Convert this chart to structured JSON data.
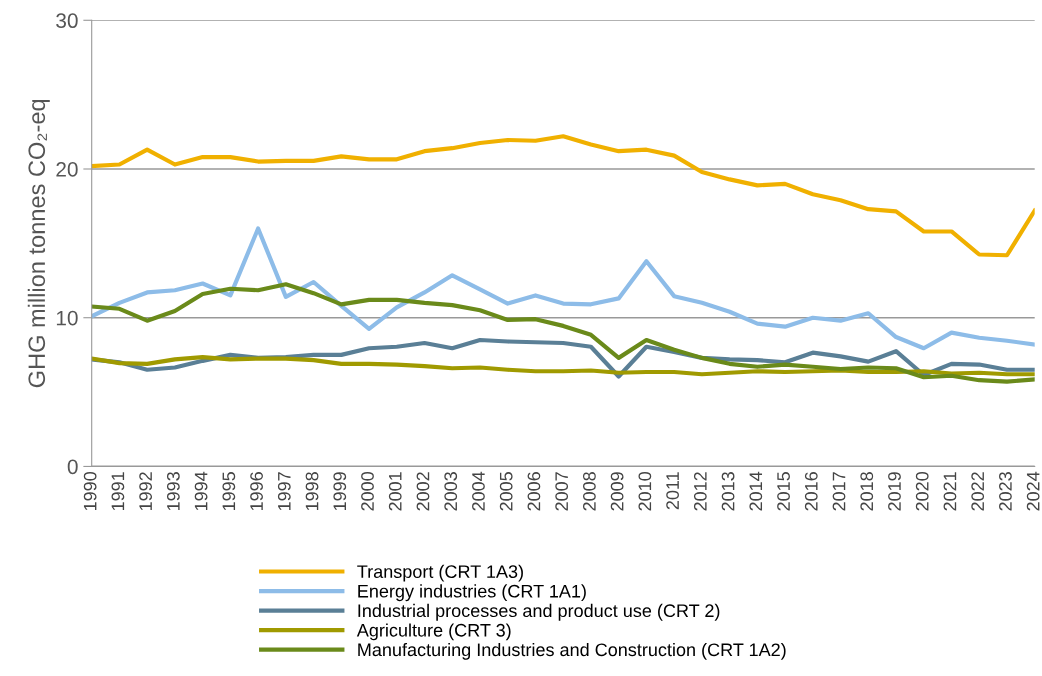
{
  "chart_data": {
    "type": "line",
    "ylabel": "GHG million tonnes CO₂-eq",
    "categories": [
      "1990",
      "1991",
      "1992",
      "1993",
      "1994",
      "1995",
      "1996",
      "1997",
      "1998",
      "1999",
      "2000",
      "2001",
      "2002",
      "2003",
      "2004",
      "2005",
      "2006",
      "2007",
      "2008",
      "2009",
      "2010",
      "2011",
      "2012",
      "2013",
      "2014",
      "2015",
      "2016",
      "2017",
      "2018",
      "2019",
      "2020",
      "2021",
      "2022",
      "2023",
      "2024"
    ],
    "series": [
      {
        "name": "Transport (CRT 1A3)",
        "color": "#f0b000",
        "values": [
          20.2,
          20.3,
          21.3,
          20.3,
          20.8,
          20.8,
          20.5,
          20.55,
          20.55,
          20.85,
          20.65,
          20.65,
          21.2,
          21.4,
          21.75,
          21.95,
          21.9,
          22.2,
          21.65,
          21.2,
          21.3,
          20.9,
          19.8,
          19.3,
          18.9,
          19.0,
          18.3,
          17.9,
          17.3,
          17.15,
          15.8,
          15.8,
          14.25,
          14.2,
          17.2
        ]
      },
      {
        "name": "Energy industries (CRT 1A1)",
        "color": "#8dbce8",
        "values": [
          10.1,
          11.0,
          11.7,
          11.85,
          12.3,
          11.5,
          16.0,
          11.4,
          12.4,
          10.8,
          9.25,
          10.7,
          11.7,
          12.85,
          11.9,
          10.95,
          11.5,
          10.95,
          10.9,
          11.3,
          13.8,
          11.45,
          11.0,
          10.4,
          9.6,
          9.4,
          10.0,
          9.8,
          10.3,
          8.7,
          7.95,
          9.0,
          8.65,
          8.45,
          8.2
        ]
      },
      {
        "name": "Industrial processes and product use (CRT 2)",
        "color": "#5a7f96",
        "values": [
          7.2,
          7.0,
          6.5,
          6.65,
          7.1,
          7.5,
          7.3,
          7.35,
          7.5,
          7.5,
          7.95,
          8.05,
          8.3,
          7.95,
          8.5,
          8.4,
          8.35,
          8.3,
          8.05,
          6.05,
          8.05,
          7.7,
          7.3,
          7.2,
          7.15,
          7.0,
          7.65,
          7.4,
          7.05,
          7.75,
          6.15,
          6.9,
          6.85,
          6.5,
          6.5
        ]
      },
      {
        "name": "Agriculture (CRT 3)",
        "color": "#a09a00",
        "values": [
          7.25,
          6.95,
          6.9,
          7.2,
          7.35,
          7.2,
          7.25,
          7.25,
          7.15,
          6.9,
          6.9,
          6.85,
          6.75,
          6.6,
          6.65,
          6.5,
          6.4,
          6.4,
          6.45,
          6.3,
          6.35,
          6.35,
          6.2,
          6.3,
          6.4,
          6.35,
          6.4,
          6.45,
          6.35,
          6.35,
          6.4,
          6.25,
          6.3,
          6.2,
          6.2
        ]
      },
      {
        "name": "Manufacturing Industries and Construction (CRT 1A2)",
        "color": "#6a8a1a",
        "values": [
          10.75,
          10.6,
          9.8,
          10.45,
          11.6,
          11.95,
          11.85,
          12.25,
          11.65,
          10.9,
          11.2,
          11.2,
          11.0,
          10.85,
          10.5,
          9.85,
          9.9,
          9.45,
          8.85,
          7.3,
          8.5,
          7.85,
          7.3,
          6.9,
          6.7,
          6.85,
          6.7,
          6.55,
          6.65,
          6.6,
          6.0,
          6.1,
          5.8,
          5.7,
          5.85
        ]
      }
    ],
    "ylim": [
      0,
      30
    ],
    "yticks": [
      0,
      10,
      20,
      30
    ],
    "grid": "y",
    "legend": "bottom",
    "marker": "none",
    "line_style": "solid"
  }
}
